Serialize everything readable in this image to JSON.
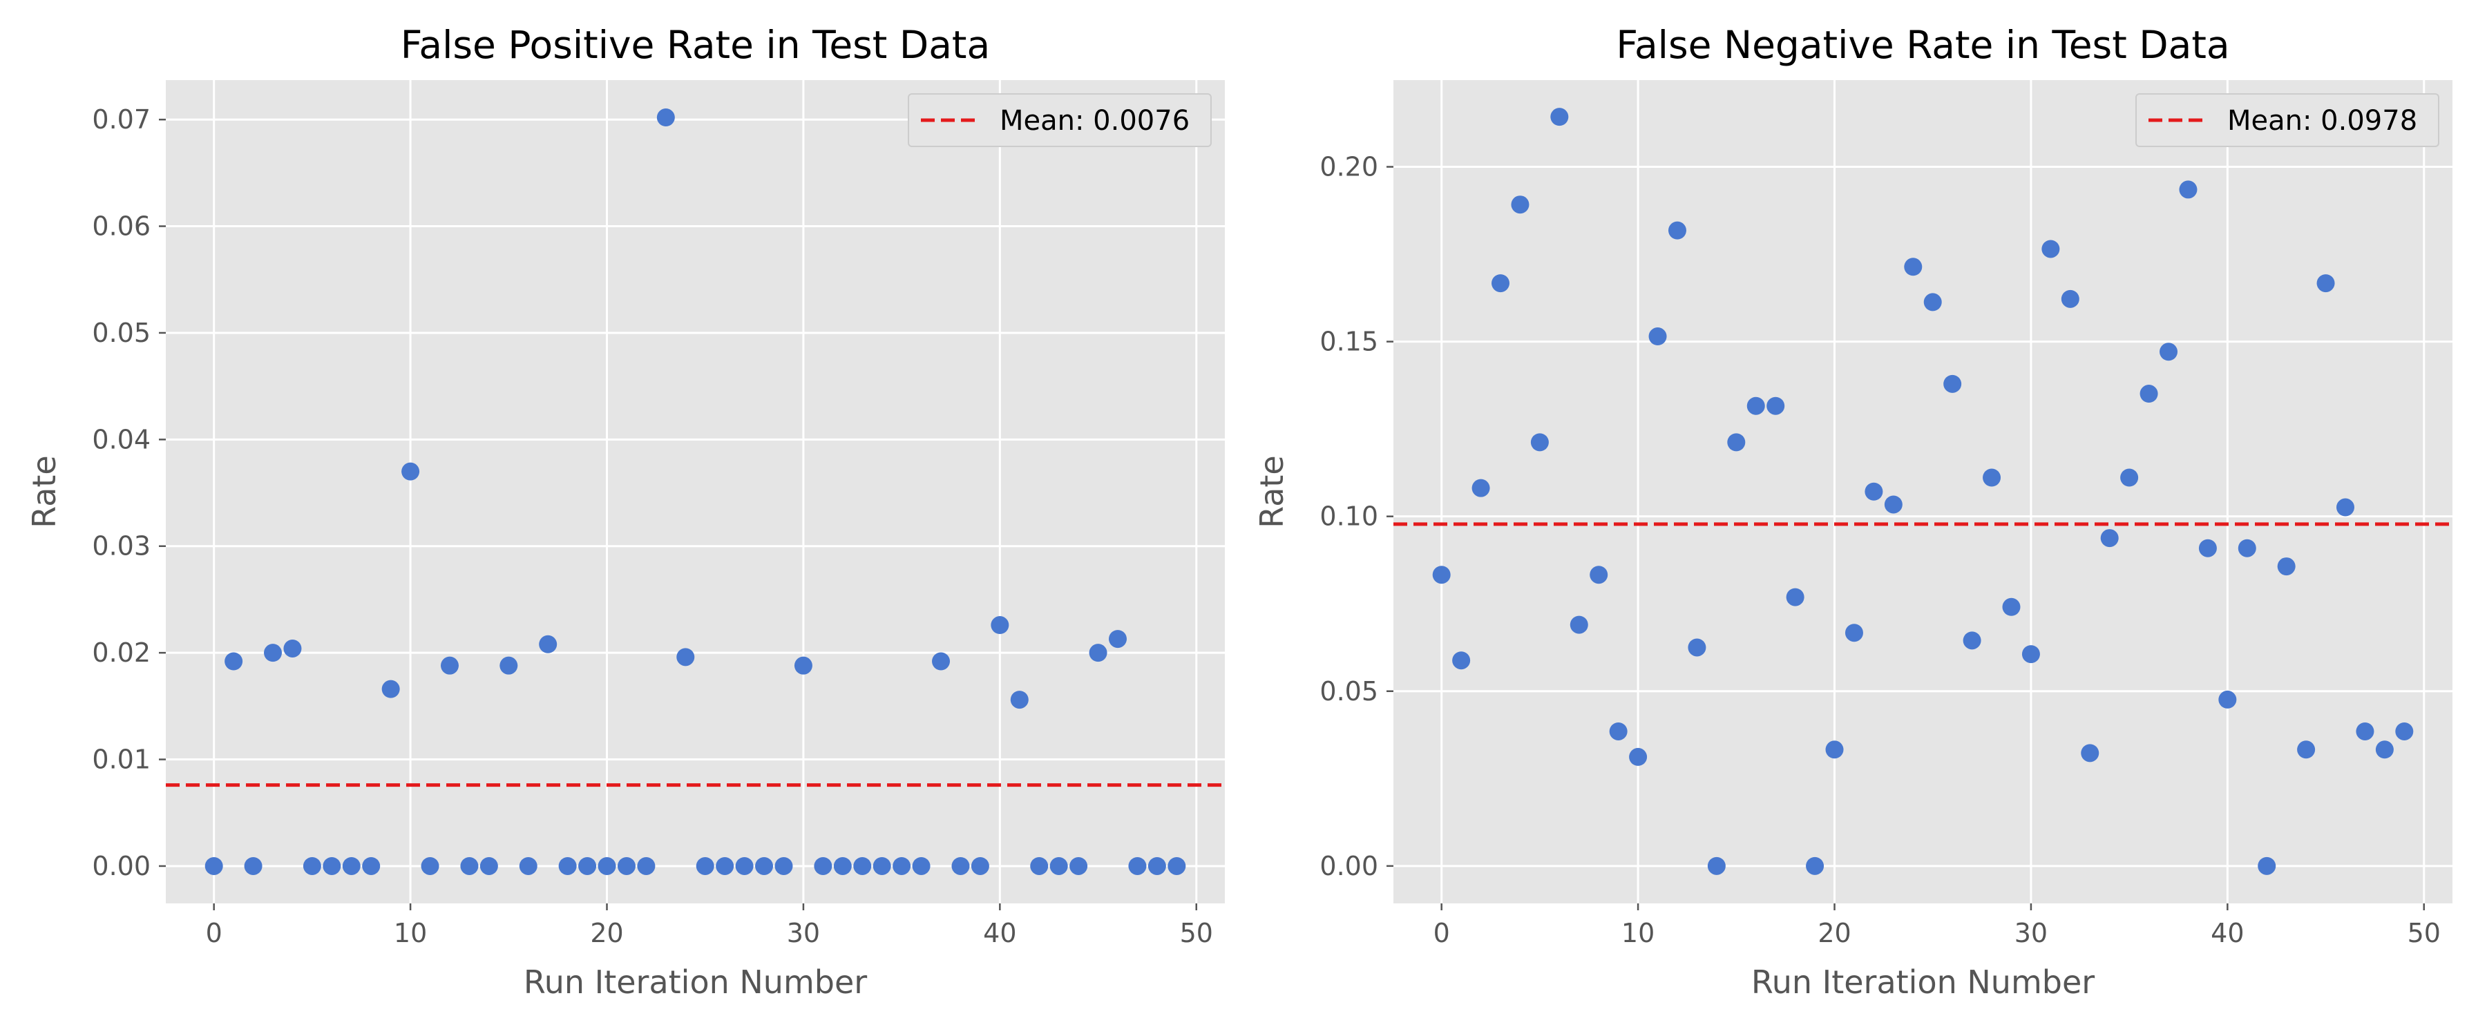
{
  "colors": {
    "panel_bg": "#e5e5e5",
    "point": "#4878cf",
    "mean_line": "#e41a1c",
    "text": "#555555"
  },
  "chart_data": [
    {
      "type": "scatter",
      "title": "False Positive Rate in Test Data",
      "xlabel": "Run Iteration Number",
      "ylabel": "Rate",
      "xlim": [
        -2.45,
        51.45
      ],
      "ylim": [
        -0.0035,
        0.0737
      ],
      "xticks": [
        0,
        10,
        20,
        30,
        40,
        50
      ],
      "xtick_labels": [
        "0",
        "10",
        "20",
        "30",
        "40",
        "50"
      ],
      "yticks": [
        0,
        0.01,
        0.02,
        0.03,
        0.04,
        0.05,
        0.06,
        0.07
      ],
      "ytick_labels": [
        "0.00",
        "0.01",
        "0.02",
        "0.03",
        "0.04",
        "0.05",
        "0.06",
        "0.07"
      ],
      "grid": true,
      "legend_position": "top-right",
      "mean": {
        "value": 0.0076,
        "label": "Mean: 0.0076"
      },
      "x": [
        0,
        1,
        2,
        3,
        4,
        5,
        6,
        7,
        8,
        9,
        10,
        11,
        12,
        13,
        14,
        15,
        16,
        17,
        18,
        19,
        20,
        21,
        22,
        23,
        24,
        25,
        26,
        27,
        28,
        29,
        30,
        31,
        32,
        33,
        34,
        35,
        36,
        37,
        38,
        39,
        40,
        41,
        42,
        43,
        44,
        45,
        46,
        47,
        48,
        49
      ],
      "y": [
        0,
        0.0192,
        0,
        0.02,
        0.0204,
        0,
        0,
        0,
        0,
        0.0166,
        0.037,
        0,
        0.0188,
        0,
        0,
        0.0188,
        0,
        0.0208,
        0,
        0,
        0,
        0,
        0,
        0.0702,
        0.0196,
        0,
        0,
        0,
        0,
        0,
        0.0188,
        0,
        0,
        0,
        0,
        0,
        0,
        0.0192,
        0,
        0,
        0.0226,
        0.0156,
        0,
        0,
        0,
        0.02,
        0.0213,
        0,
        0,
        0
      ]
    },
    {
      "type": "scatter",
      "title": "False Negative Rate in Test Data",
      "xlabel": "Run Iteration Number",
      "ylabel": "Rate",
      "xlim": [
        -2.45,
        51.45
      ],
      "ylim": [
        -0.0107,
        0.2248
      ],
      "xticks": [
        0,
        10,
        20,
        30,
        40,
        50
      ],
      "xtick_labels": [
        "0",
        "10",
        "20",
        "30",
        "40",
        "50"
      ],
      "yticks": [
        0,
        0.05,
        0.1,
        0.15,
        0.2
      ],
      "ytick_labels": [
        "0.00",
        "0.05",
        "0.10",
        "0.15",
        "0.20"
      ],
      "grid": true,
      "legend_position": "top-right",
      "mean": {
        "value": 0.0978,
        "label": "Mean: 0.0978"
      },
      "x": [
        0,
        1,
        2,
        3,
        4,
        5,
        6,
        7,
        8,
        9,
        10,
        11,
        12,
        13,
        14,
        15,
        16,
        17,
        18,
        19,
        20,
        21,
        22,
        23,
        24,
        25,
        26,
        27,
        28,
        29,
        30,
        31,
        32,
        33,
        34,
        35,
        36,
        37,
        38,
        39,
        40,
        41,
        42,
        43,
        44,
        45,
        46,
        47,
        48,
        49
      ],
      "y": [
        0.0833,
        0.0588,
        0.1081,
        0.1667,
        0.1892,
        0.1212,
        0.2143,
        0.069,
        0.0833,
        0.0385,
        0.0312,
        0.1515,
        0.1818,
        0.0625,
        0,
        0.1212,
        0.1316,
        0.1316,
        0.0769,
        0,
        0.0333,
        0.0667,
        0.1071,
        0.1034,
        0.1714,
        0.1613,
        0.1379,
        0.0645,
        0.1111,
        0.0741,
        0.0606,
        0.1765,
        0.1622,
        0.0323,
        0.0938,
        0.1111,
        0.1351,
        0.1471,
        0.1935,
        0.0909,
        0.0476,
        0.0909,
        0,
        0.0857,
        0.0333,
        0.1667,
        0.1026,
        0.0385,
        0.0333,
        0.0385
      ]
    }
  ]
}
